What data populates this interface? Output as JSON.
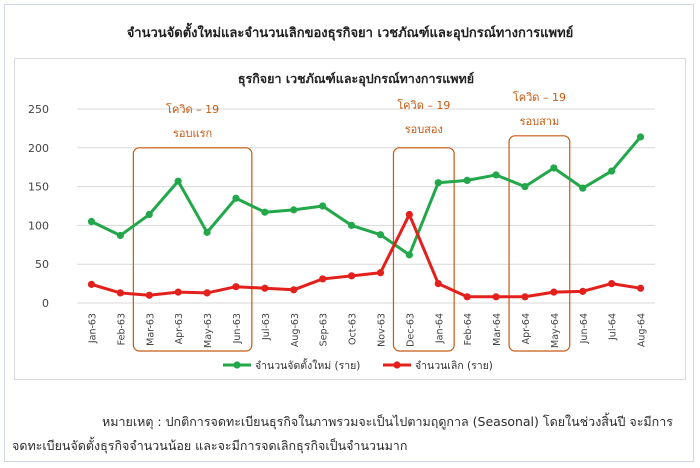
{
  "title": "จำนวนจัดตั้งใหม่และจำนวนเลิกของธุรกิจยา เวชภัณฑ์และอุปกรณ์ทางการแพทย์",
  "chart_data": {
    "type": "line",
    "title": "ธุรกิจยา เวชภัณฑ์และอุปกรณ์ทางการแพทย์",
    "categories": [
      "Jan-63",
      "Feb-63",
      "Mar-63",
      "Apr-63",
      "May-63",
      "Jun-63",
      "Jul-63",
      "Aug-63",
      "Sep-63",
      "Oct-63",
      "Nov-63",
      "Dec-63",
      "Jan-64",
      "Feb-64",
      "Mar-64",
      "Apr-64",
      "May-64",
      "Jun-64",
      "Jul-64",
      "Aug-64"
    ],
    "series": [
      {
        "name": "จำนวนจัดตั้งใหม่ (ราย)",
        "color": "#22a84a",
        "values": [
          105,
          87,
          114,
          157,
          91,
          135,
          117,
          120,
          125,
          100,
          88,
          62,
          155,
          158,
          165,
          150,
          174,
          148,
          170,
          214
        ]
      },
      {
        "name": "จำนวนเลิก (ราย)",
        "color": "#e3201b",
        "values": [
          24,
          13,
          10,
          14,
          13,
          21,
          19,
          17,
          31,
          35,
          39,
          114,
          25,
          8,
          8,
          8,
          14,
          15,
          25,
          19
        ]
      }
    ],
    "ylim": [
      0,
      250
    ],
    "yticks": [
      0,
      50,
      100,
      150,
      200,
      250
    ],
    "grid": true,
    "legend": "bottom",
    "annotations": [
      {
        "line1": "โควิด – 19",
        "line2": "รอบแรก",
        "from": "Mar-63",
        "to": "Jun-63"
      },
      {
        "line1": "โควิด – 19",
        "line2": "รอบสอง",
        "from": "Dec-63",
        "to": "Jan-64"
      },
      {
        "line1": "โควิด – 19",
        "line2": "รอบสาม",
        "from": "Apr-64",
        "to": "May-64"
      }
    ],
    "annotation_color": "#c55a11"
  },
  "note": {
    "line1": "หมายเหตุ : ปกติการจดทะเบียนธุรกิจในภาพรวมจะเป็นไปตามฤดูกาล (Seasonal) โดยในช่วงสิ้นปี จะมีการ",
    "line2": "จดทะเบียนจัดตั้งธุรกิจจำนวนน้อย และจะมีการจดเลิกธุรกิจเป็นจำนวนมาก"
  }
}
